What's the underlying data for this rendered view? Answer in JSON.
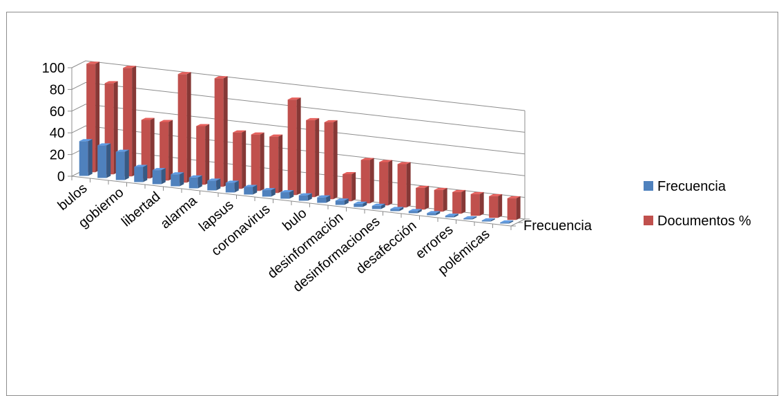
{
  "chart_data": {
    "type": "bar",
    "title": "",
    "xlabel": "",
    "ylabel": "",
    "ylim": [
      0,
      100
    ],
    "yticks": [
      "0",
      "20",
      "40",
      "60",
      "80",
      "100"
    ],
    "depth_axis_label": "Frecuencia",
    "categories": [
      "bulos",
      "",
      "gobierno",
      "",
      "libertad",
      "",
      "alarma",
      "",
      "lapsus",
      "",
      "coronavirus",
      "",
      "bulo",
      "",
      "desinformación",
      "",
      "desinformaciones",
      "",
      "desafección",
      "",
      "errores",
      "",
      "polémicas",
      ""
    ],
    "series": [
      {
        "name": "Frecuencia",
        "color": "#4f81bd",
        "values": [
          32,
          30,
          26,
          14,
          13,
          11,
          10,
          9,
          9,
          7,
          6,
          6,
          5,
          5,
          4,
          3,
          3,
          2,
          2,
          2,
          1.5,
          1,
          1,
          1
        ]
      },
      {
        "name": "Documentos %",
        "color": "#c0504d",
        "values": [
          100,
          84,
          100,
          54,
          54,
          100,
          54,
          100,
          52,
          52,
          52,
          88,
          71,
          71,
          25,
          40,
          40,
          40,
          20,
          20,
          20,
          20,
          20,
          20
        ]
      }
    ],
    "legend_position": "right",
    "grid": true
  }
}
